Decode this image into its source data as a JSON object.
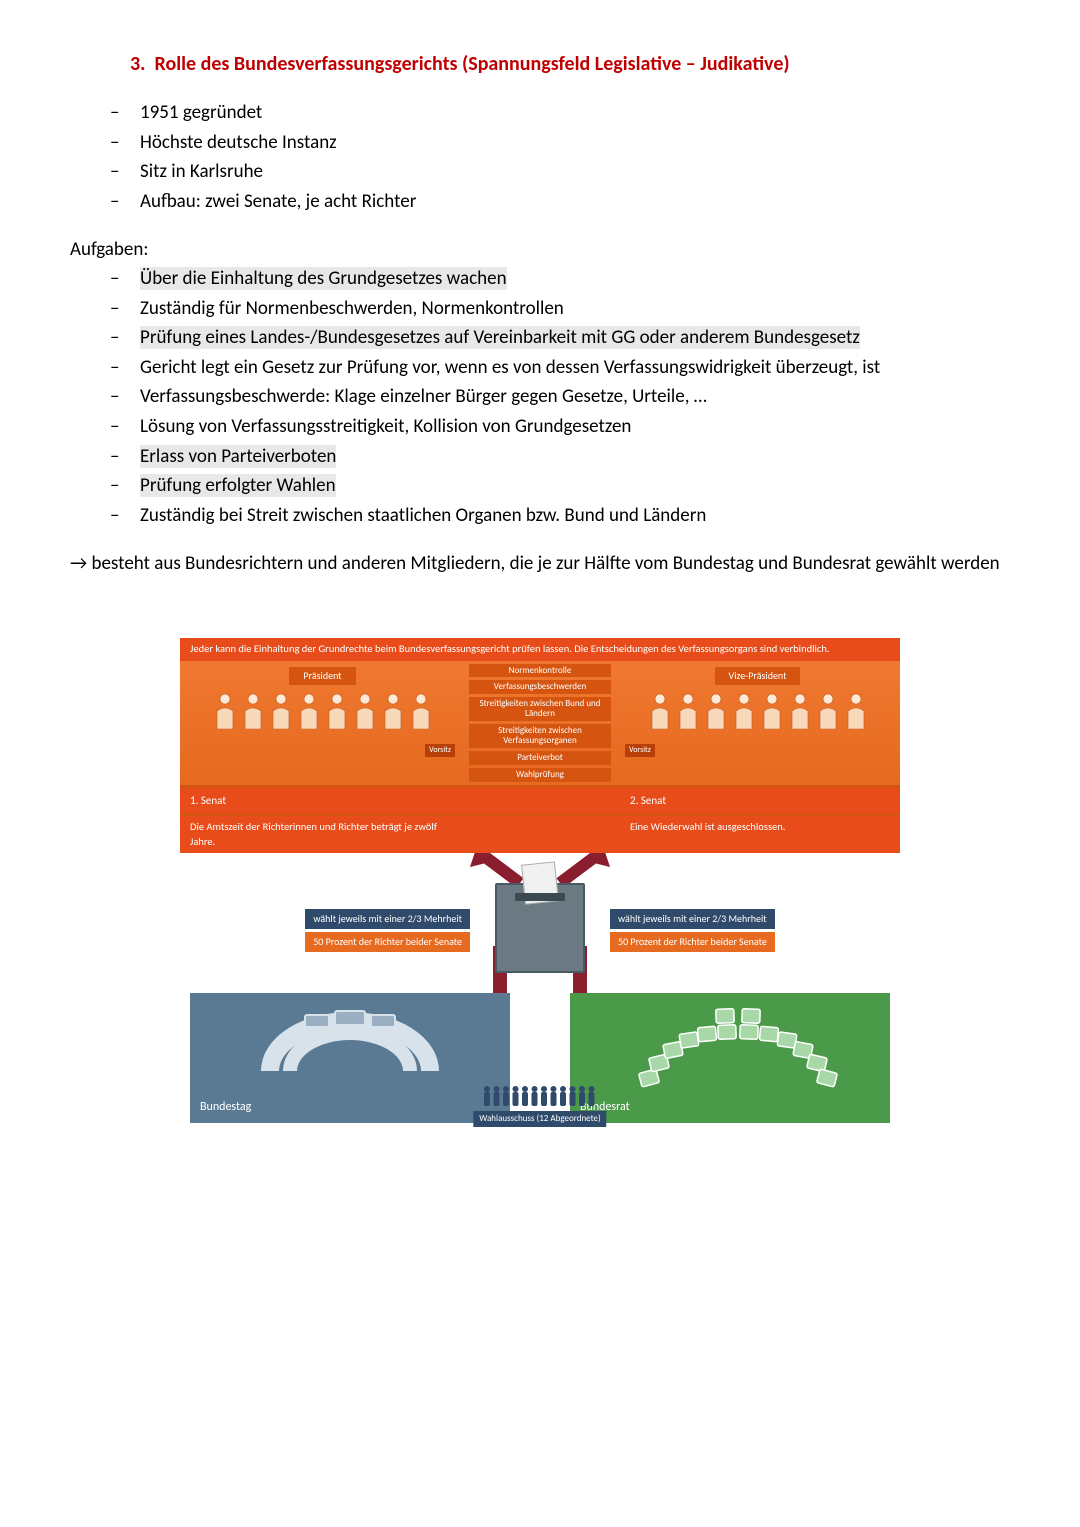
{
  "heading": {
    "number": "3.",
    "text": "Rolle des Bundesverfassungsgerichts (Spannungsfeld Legislative – Judikative)"
  },
  "bullets_main": [
    "1951 gegründet",
    "Höchste deutsche Instanz",
    "Sitz in Karlsruhe",
    "Aufbau: zwei Senate, je acht Richter"
  ],
  "tasks_heading": "Aufgaben:",
  "bullets_tasks": [
    {
      "text": "Über die Einhaltung des Grundgesetzes wachen",
      "hl": true
    },
    {
      "text": "Zuständig für Normenbeschwerden, Normenkontrollen",
      "hl": false
    },
    {
      "text": "Prüfung eines Landes-/Bundesgesetzes auf Vereinbarkeit mit GG oder anderem Bundesgesetz",
      "hl": true
    },
    {
      "text": "Gericht legt ein Gesetz zur Prüfung vor, wenn es von dessen Verfassungswidrigkeit überzeugt, ist",
      "hl": false
    },
    {
      "text": "Verfassungsbeschwerde: Klage einzelner Bürger gegen Gesetze, Urteile, …",
      "hl": false
    },
    {
      "text": "Lösung von Verfassungsstreitigkeit, Kollision von Grundgesetzen",
      "hl": false
    },
    {
      "text": "Erlass von Parteiverboten",
      "hl": true
    },
    {
      "text": "Prüfung erfolgter Wahlen",
      "hl": true
    },
    {
      "text": "Zuständig bei Streit zwischen staatlichen Organen bzw. Bund und Ländern",
      "hl": false
    }
  ],
  "conclusion": "besteht aus Bundesrichtern und anderen Mitgliedern, die je zur Hälfte vom Bundestag und Bundesrat gewählt werden",
  "diagram": {
    "top_banner": "Jeder kann die Einhaltung der Grundrechte beim Bundesverfassungsgericht prüfen lassen. Die Entscheidungen des Verfassungsorgans sind verbindlich.",
    "president": "Präsident",
    "vice_president": "Vize-Präsident",
    "center_items": [
      "Normenkontrolle",
      "Verfassungsbeschwerden",
      "Streitigkeiten zwischen Bund und Ländern",
      "Streitigkeiten zwischen Verfassungsorganen",
      "Parteiverbot",
      "Wahlprüfung"
    ],
    "vorsitz": "Vorsitz",
    "senat1": "1. Senat",
    "senat2": "2. Senat",
    "term_info": "Die Amtszeit der Richterinnen und Richter beträgt je zwölf Jahre.",
    "reelection_info": "Eine Wiederwahl ist ausgeschlossen.",
    "majority_label": "wählt jeweils mit einer 2/3 Mehrheit",
    "percent_label": "50 Prozent der Richter beider Senate",
    "wahlausschuss": "Wahlausschuss (12 Abgeordnete)",
    "bundestag": "Bundestag",
    "bundesrat": "Bundesrat",
    "colors": {
      "banner": "#e84c1a",
      "senat_bg": "#e66a20",
      "center_box": "#d45410",
      "pill_blue": "#2f4a6a",
      "bundestag_bg": "#5a7a94",
      "bundesrat_bg": "#4a9a4a",
      "flow_line": "#8a1e2e"
    }
  }
}
